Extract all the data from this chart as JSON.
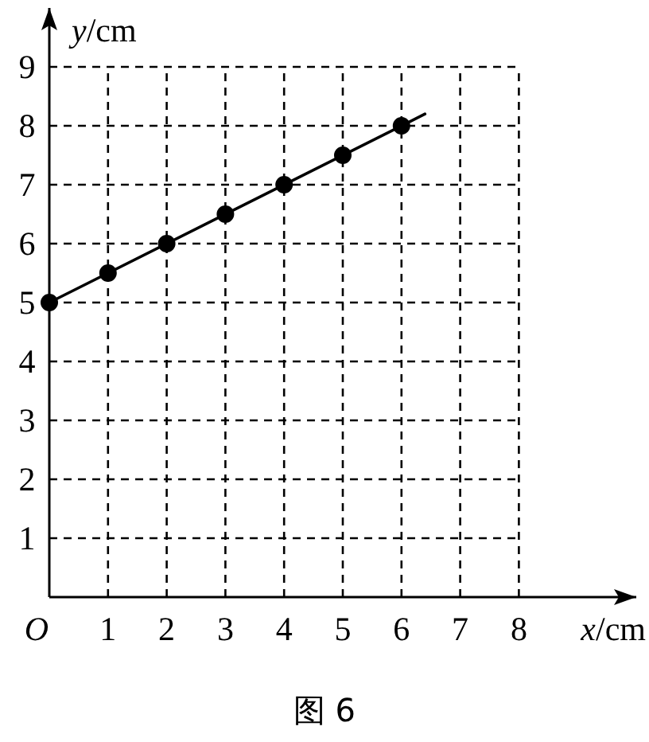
{
  "chart_data": {
    "type": "scatter",
    "xlabel": "*x*/cm",
    "ylabel": "*y*/cm",
    "annotations": [
      "图 6"
    ],
    "xlim": [
      0,
      10
    ],
    "ylim": [
      0,
      10
    ],
    "xticks": [
      {
        "value": 0,
        "label": "O"
      },
      1,
      2,
      3,
      4,
      5,
      6,
      7,
      8
    ],
    "yticks": [
      1,
      2,
      3,
      4,
      5,
      6,
      7,
      8,
      9
    ],
    "grid": true,
    "series": [
      {
        "marker": "circle",
        "color": "#000000",
        "x": [
          0,
          1,
          2,
          3,
          4,
          5,
          6
        ],
        "values": [
          5,
          5.5,
          6,
          6.5,
          7,
          7.5,
          8
        ]
      },
      {
        "type": "line",
        "marker": "none",
        "color": "#000000",
        "line_style": "solid",
        "x": [
          0,
          6.4
        ],
        "values": [
          5,
          8.2
        ]
      }
    ]
  }
}
